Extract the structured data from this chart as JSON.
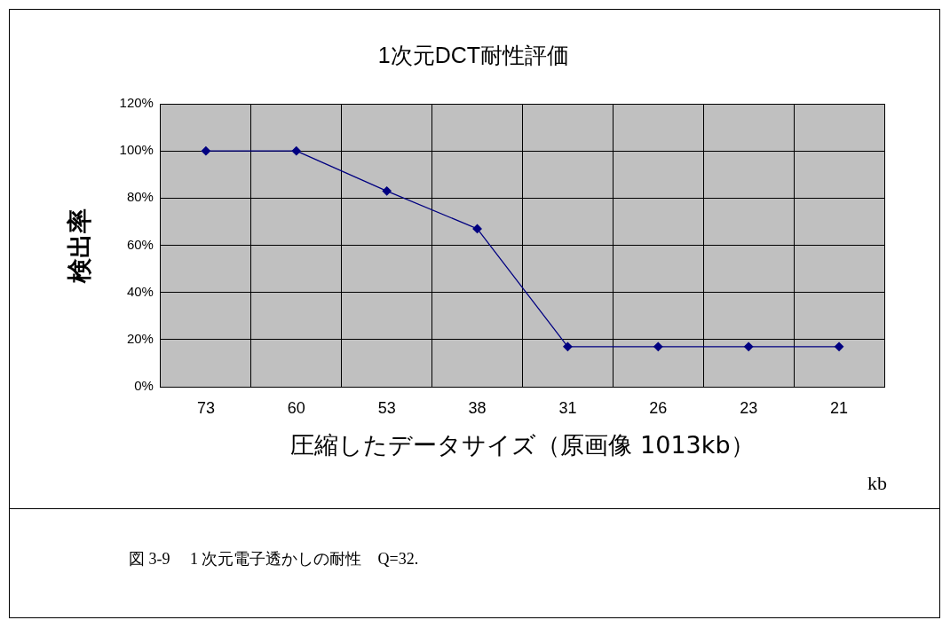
{
  "chart_data": {
    "type": "line",
    "title": "1次元DCT耐性評価",
    "xlabel": "圧縮したデータサイズ（原画像 1013kb）",
    "ylabel": "検出率",
    "categories": [
      "73",
      "60",
      "53",
      "38",
      "31",
      "26",
      "23",
      "21"
    ],
    "series": [
      {
        "color": "#000080",
        "values": [
          100,
          100,
          83,
          67,
          17,
          17,
          17,
          17
        ]
      }
    ],
    "ylim": [
      0,
      120
    ],
    "yticks": [
      {
        "value": 0,
        "label": "0%"
      },
      {
        "value": 20,
        "label": "20%"
      },
      {
        "value": 40,
        "label": "40%"
      },
      {
        "value": 60,
        "label": "60%"
      },
      {
        "value": 80,
        "label": "80%"
      },
      {
        "value": 100,
        "label": "100%"
      },
      {
        "value": 120,
        "label": "120%"
      }
    ],
    "grid": true,
    "legend": false,
    "marker": "diamond",
    "line_style": "solid",
    "annotations": [
      "kb",
      "図 3-9　 1 次元電子透かしの耐性　Q=32."
    ]
  }
}
